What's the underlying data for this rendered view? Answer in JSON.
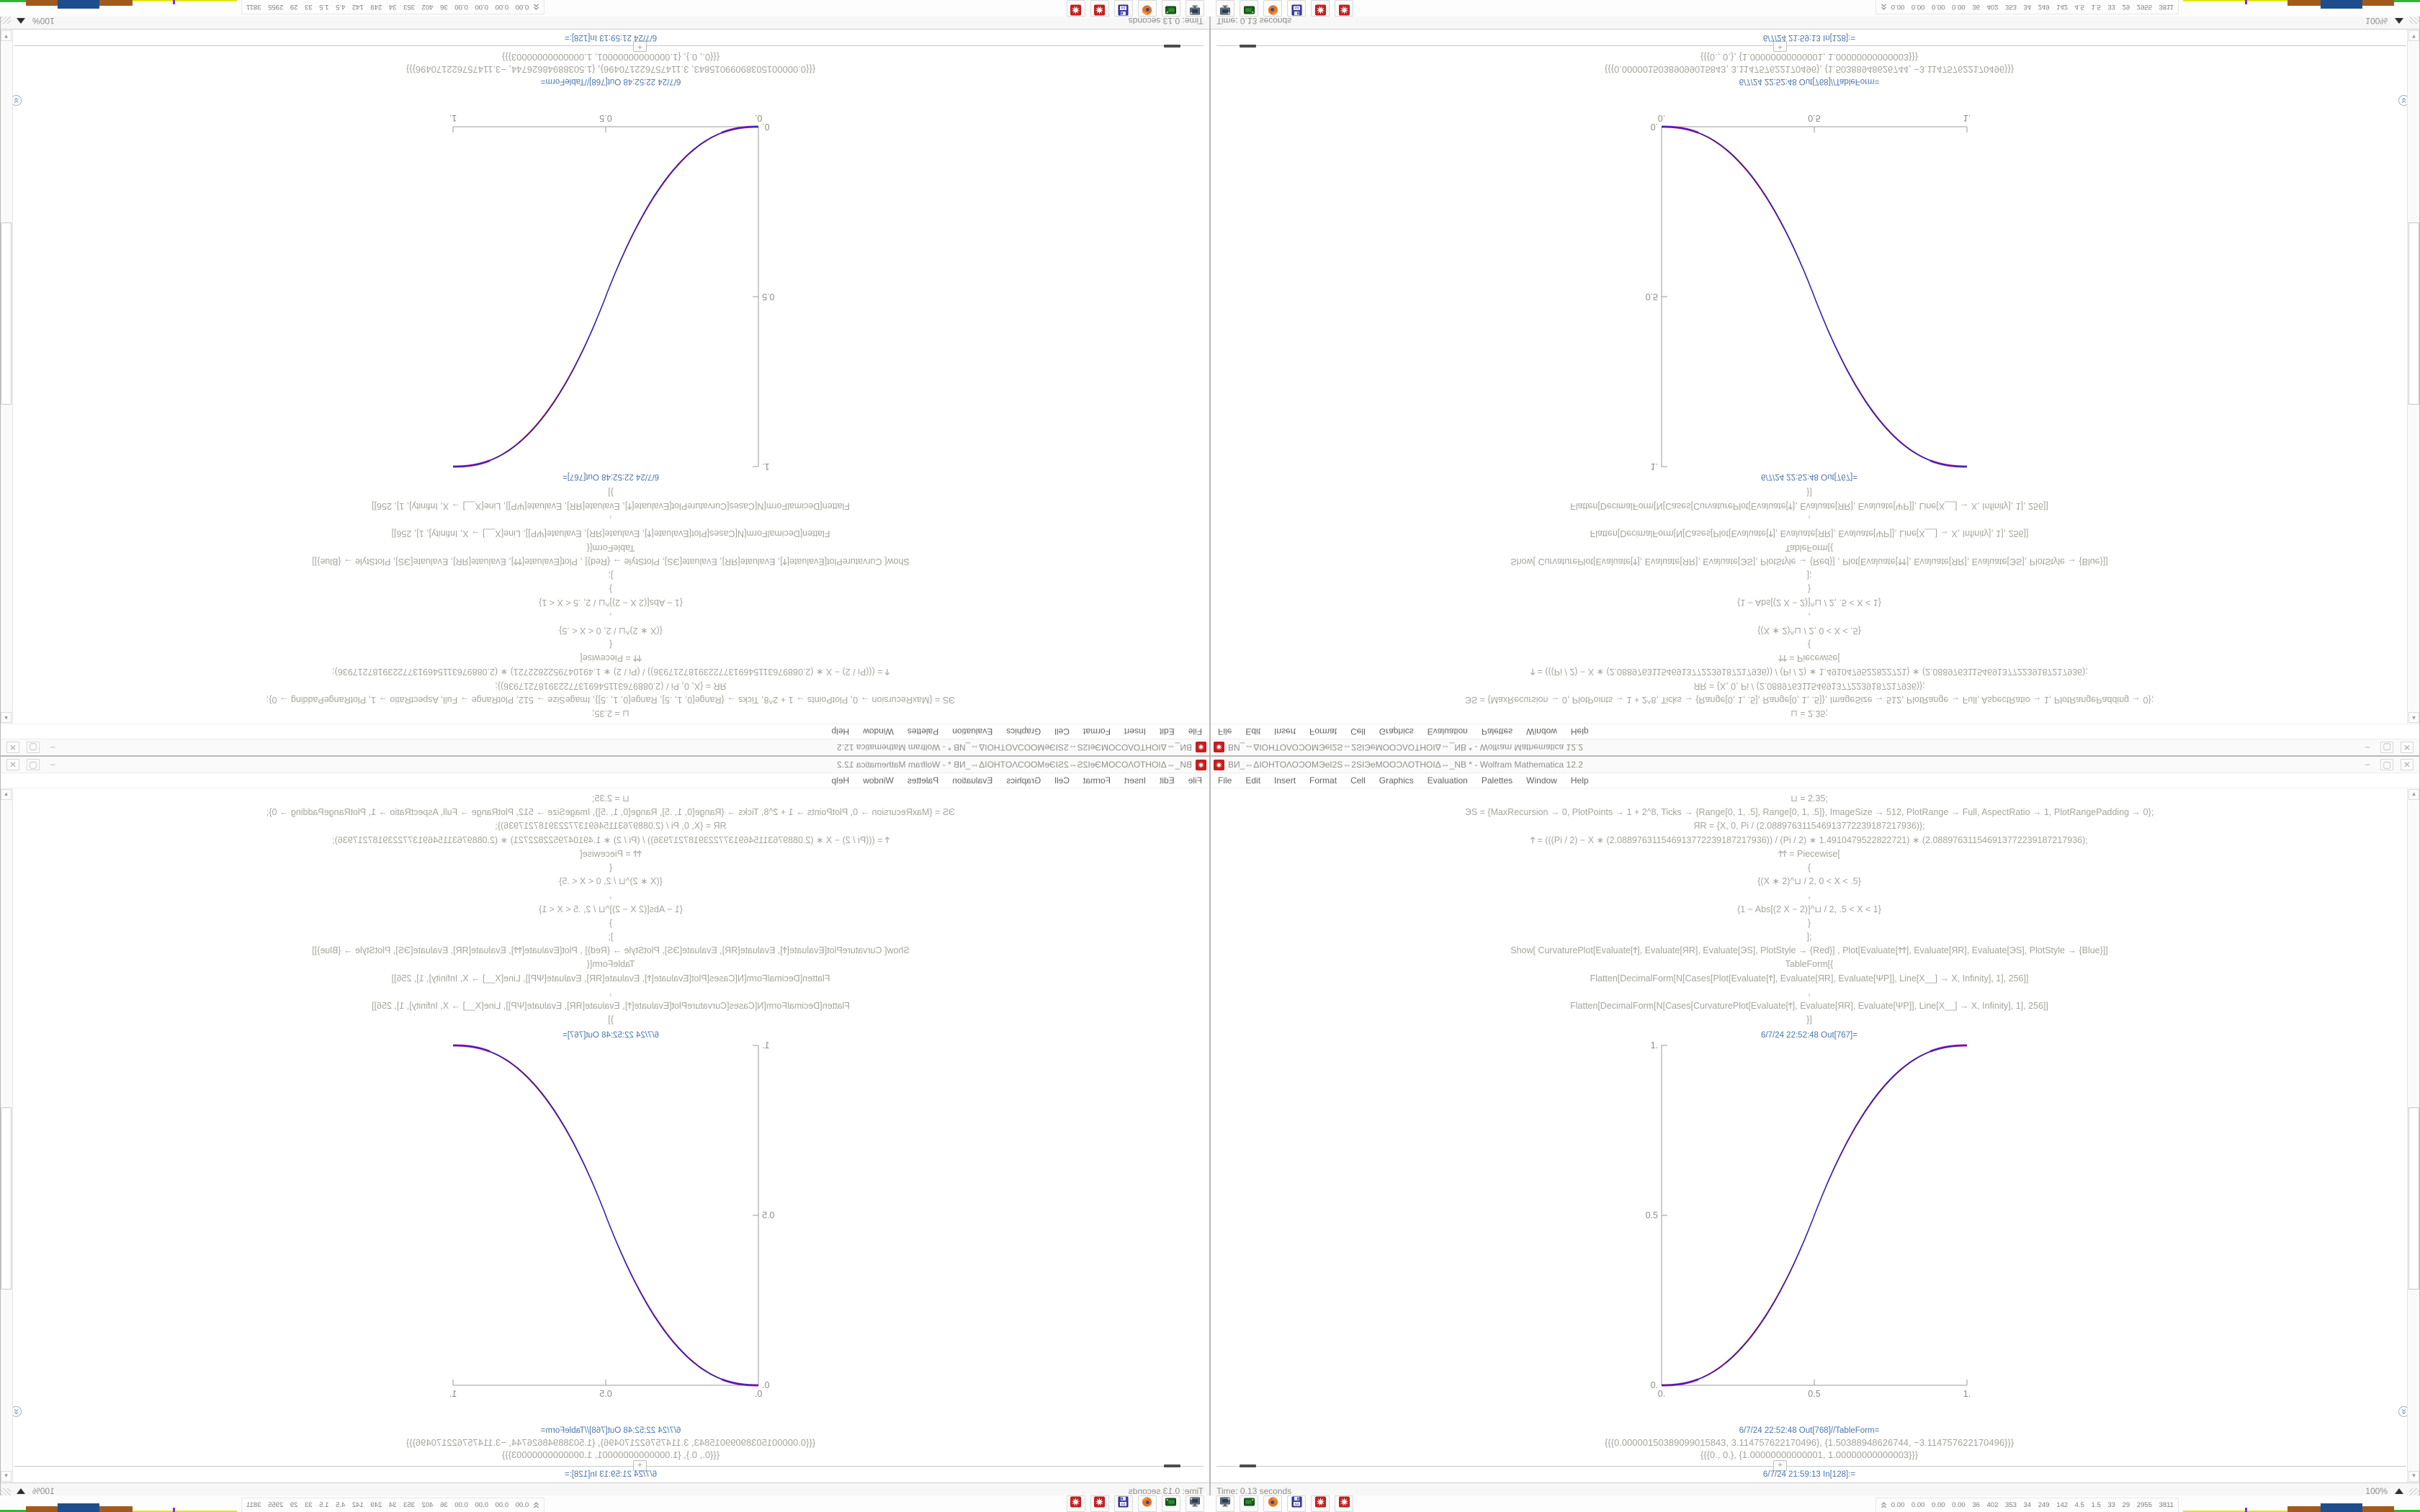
{
  "window": {
    "title": "ВИ_⇔ΔΙΟΗΤΟΛΟϽΟΜЭеІ2Ѕ⇔2ЅІЭеΜΟΟϽΛΟΤΗΟΙΔ⇔_NB * - Wolfram Mathematica 12.2",
    "app_icon": "mathematica-spikey",
    "menu": [
      "File",
      "Edit",
      "Insert",
      "Format",
      "Cell",
      "Graphics",
      "Evaluation",
      "Palettes",
      "Window",
      "Help"
    ],
    "controls": {
      "minimize": "–",
      "maximize": "▢",
      "close": "✕"
    }
  },
  "notebook": {
    "code_lines": [
      "⊔ = 2.35;",
      "ЭЅ = {MaxRecursion → 0, PlotPoints → 1 + 2^8, Ticks → {Range[0, 1, .5], Range[0, 1, .5]}, ImageSize → 512, PlotRange → Full, AspectRatio → 1, PlotRangePadding → 0};",
      "ЯR = {X, 0, Pi / (2.088976311546913772239187217936)};",
      "Ϯ = (((Pi / 2) − X ∗ (2.088976311546913772239187217936)) / (Pi / 2) ∗ 1.4910479522822721) ∗ (2.088976311546913772239187217936);",
      "ϮϮ = Piecewise[",
      "{",
      "{(X ∗ 2)^⊔ / 2, 0 < X < .5}",
      ",",
      "{1 − Abs[(2 X − 2)]^⊔ / 2, .5 < X < 1}",
      "}",
      "];",
      "Show[  CurvaturePlot[Evaluate[Ϯ], Evaluate[ЯR], Evaluate[ЭЅ], PlotStyle → {Red}]  ,  Plot[Evaluate[ϮϮ], Evaluate[ЯR], Evaluate[ЭЅ], PlotStyle → {Blue}]]",
      "TableForm[{",
      "Flatten[DecimalForm[N[Cases[Plot[Evaluate[Ϯ], Evaluate[ЯR], Evaluate[ΨΡ]], Line[X__] → X, Infinity], 1], 256]]",
      ",",
      "Flatten[DecimalForm[N[Cases[CurvaturePlot[Evaluate[Ϯ], Evaluate[ЯR], Evaluate[ΨΡ]], Line[X__] → X, Infinity], 1], 256]]",
      "}]"
    ],
    "out_plot_label": "6/7/24 22:52:48 Out[767]=",
    "out_table_label": "6/7/24 22:52:48 Out[768]//TableForm=",
    "table_rows": [
      "{{{0.00000150389099015843, 3.114757622170496}, {1.50388948626744, −3.114757622170496}}}",
      "{{{0., 0.}, {1.00000000000001, 1.00000000000003}}}"
    ],
    "next_in_label": "6/7/24 21:59:13 In[128]:=",
    "insert_plus": "+"
  },
  "status_bar": {
    "left": "Time: 0.13 seconds",
    "zoom": "100%"
  },
  "taskbar": {
    "icons": [
      "computer-icon",
      "drive-icon",
      "firefox-icon",
      "floppy64-icon",
      "mathematica-icon",
      "mathematica-icon"
    ],
    "floppy_label": "64",
    "tray_values": "0.00 0.00 0.00 0.00 36 402 353 34 249 142 4.5 1.5 33 29 2955 3811",
    "tray_graph": [
      {
        "color": "#e3e31a",
        "w": 86,
        "h": 2
      },
      {
        "color": "#8a2be2",
        "w": 3,
        "h": 6
      },
      {
        "color": "#e3e31a",
        "w": 56,
        "h": 2
      },
      {
        "color": "#a05a1e",
        "w": 46,
        "h": 8
      },
      {
        "color": "#1f4e8c",
        "w": 58,
        "h": 12
      },
      {
        "color": "#a05a1e",
        "w": 44,
        "h": 8
      },
      {
        "color": "#2eb82e",
        "w": 36,
        "h": 3
      }
    ]
  },
  "chart_data": {
    "type": "line",
    "title": "6/7/24 22:52:48 Out[767]=",
    "xlabel": "",
    "ylabel": "",
    "xlim": [
      0,
      1
    ],
    "ylim": [
      0,
      1
    ],
    "x_ticks": [
      "0.",
      "0.5",
      "1."
    ],
    "y_ticks": [
      "0.",
      "0.5",
      "1."
    ],
    "grid": false,
    "legend": "none",
    "exponent": 2.35,
    "x": [
      0,
      0.05,
      0.1,
      0.15,
      0.2,
      0.25,
      0.3,
      0.35,
      0.4,
      0.45,
      0.5,
      0.55,
      0.6,
      0.65,
      0.7,
      0.75,
      0.8,
      0.85,
      0.9,
      0.95,
      1
    ],
    "series": [
      {
        "name": "CurvaturePlot (Red)",
        "color": "#c62020",
        "values": [
          0,
          0.0022,
          0.0114,
          0.0295,
          0.058,
          0.098,
          0.1506,
          0.2162,
          0.296,
          0.3903,
          0.5,
          0.6097,
          0.704,
          0.7838,
          0.8494,
          0.902,
          0.942,
          0.9705,
          0.9886,
          0.9978,
          1
        ]
      },
      {
        "name": "Plot (Blue)",
        "color": "#2020c6",
        "values": [
          0,
          0.0022,
          0.0114,
          0.0295,
          0.058,
          0.098,
          0.1506,
          0.2162,
          0.296,
          0.3903,
          0.5,
          0.6097,
          0.704,
          0.7838,
          0.8494,
          0.902,
          0.942,
          0.9705,
          0.9886,
          0.9978,
          1
        ]
      }
    ],
    "overlap_color": "#b020b0",
    "axis_color": "#999999"
  }
}
